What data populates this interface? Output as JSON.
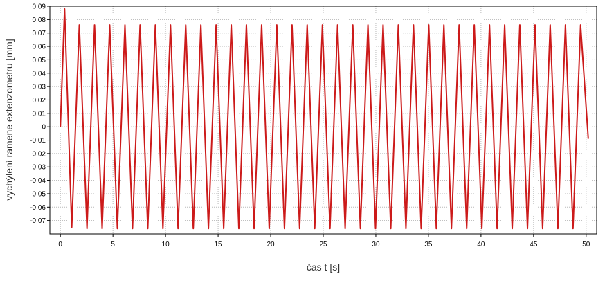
{
  "chart_data": {
    "type": "line",
    "title": "",
    "xlabel": "čas t [s]",
    "ylabel": "vychýlení ramene extenzometru [mm]",
    "xlim": [
      -1,
      51
    ],
    "ylim": [
      -0.08,
      0.09
    ],
    "grid": true,
    "line_color": "#cc1a1a",
    "x_ticks": [
      0,
      5,
      10,
      15,
      20,
      25,
      30,
      35,
      40,
      45,
      50
    ],
    "x_tick_labels": [
      "0",
      "5",
      "10",
      "15",
      "20",
      "25",
      "30",
      "35",
      "40",
      "45",
      "50"
    ],
    "y_ticks": [
      0.09,
      0.08,
      0.07,
      0.06,
      0.05,
      0.04,
      0.03,
      0.02,
      0.01,
      0,
      -0.01,
      -0.02,
      -0.03,
      -0.04,
      -0.05,
      -0.06,
      -0.07
    ],
    "y_tick_labels": [
      "0,09",
      "0,08",
      "0,07",
      "0,06",
      "0,05",
      "0,04",
      "0,03",
      "0,02",
      "0,01",
      "0",
      "-0,01",
      "-0,02",
      "-0,03",
      "-0,04",
      "-0,05",
      "-0,06",
      "-0,07"
    ],
    "series": [
      {
        "x": [
          0.0,
          0.4,
          1.08,
          1.8,
          2.53,
          3.25,
          3.97,
          4.69,
          5.42,
          6.14,
          6.86,
          7.58,
          8.31,
          9.03,
          9.75,
          10.47,
          11.19,
          11.92,
          12.64,
          13.36,
          14.08,
          14.81,
          15.53,
          16.25,
          16.97,
          17.69,
          18.42,
          19.14,
          19.86,
          20.58,
          21.31,
          22.03,
          22.75,
          23.47,
          24.19,
          24.92,
          25.64,
          26.36,
          27.08,
          27.81,
          28.53,
          29.25,
          29.97,
          30.69,
          31.42,
          32.14,
          32.86,
          33.58,
          34.31,
          35.03,
          35.75,
          36.47,
          37.19,
          37.92,
          38.64,
          39.36,
          40.08,
          40.81,
          41.53,
          42.25,
          42.97,
          43.69,
          44.42,
          45.14,
          45.86,
          46.58,
          47.31,
          48.03,
          48.75,
          49.47,
          50.2
        ],
        "y": [
          0.0,
          0.088,
          -0.075,
          0.076,
          -0.076,
          0.076,
          -0.076,
          0.076,
          -0.076,
          0.076,
          -0.076,
          0.076,
          -0.076,
          0.076,
          -0.076,
          0.076,
          -0.076,
          0.076,
          -0.076,
          0.076,
          -0.076,
          0.076,
          -0.076,
          0.076,
          -0.076,
          0.076,
          -0.076,
          0.076,
          -0.076,
          0.076,
          -0.076,
          0.076,
          -0.076,
          0.076,
          -0.076,
          0.076,
          -0.076,
          0.076,
          -0.076,
          0.076,
          -0.076,
          0.076,
          -0.076,
          0.076,
          -0.076,
          0.076,
          -0.076,
          0.076,
          -0.076,
          0.076,
          -0.076,
          0.076,
          -0.076,
          0.076,
          -0.076,
          0.076,
          -0.076,
          0.076,
          -0.076,
          0.076,
          -0.076,
          0.076,
          -0.076,
          0.076,
          -0.076,
          0.076,
          -0.076,
          0.076,
          -0.076,
          0.076,
          -0.009
        ]
      }
    ]
  }
}
